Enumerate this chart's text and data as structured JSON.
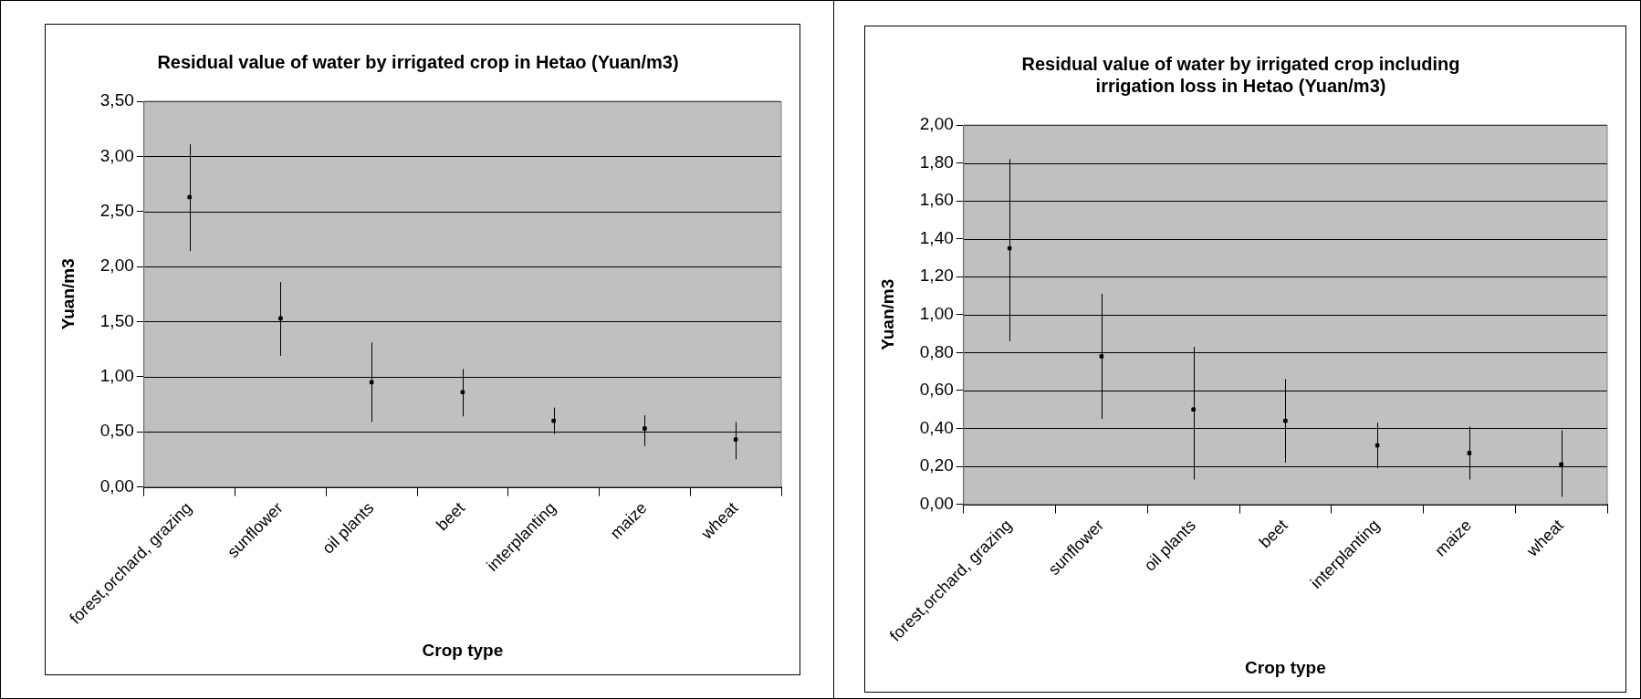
{
  "chart_data": [
    {
      "type": "scatter",
      "title": "Residual value of water by irrigated crop in Hetao (Yuan/m3)",
      "xlabel": "Crop type",
      "ylabel": "Yuan/m3",
      "categories": [
        "forest,orchard, grazing",
        "sunflower",
        "oil plants",
        "beet",
        "interplanting",
        "maize",
        "wheat"
      ],
      "series": [
        {
          "color": "#000000",
          "values": [
            2.63,
            1.53,
            0.95,
            0.86,
            0.6,
            0.53,
            0.43
          ],
          "errors": [
            [
              2.14,
              3.11
            ],
            [
              1.19,
              1.86
            ],
            [
              0.59,
              1.31
            ],
            [
              0.64,
              1.07
            ],
            [
              0.48,
              0.72
            ],
            [
              0.37,
              0.65
            ],
            [
              0.25,
              0.59
            ]
          ]
        }
      ],
      "ylim": [
        0,
        3.5
      ],
      "yticks": [
        {
          "value": 0,
          "label": "0,00"
        },
        {
          "value": 0.5,
          "label": "0,50"
        },
        {
          "value": 1,
          "label": "1,00"
        },
        {
          "value": 1.5,
          "label": "1,50"
        },
        {
          "value": 2,
          "label": "2,00"
        },
        {
          "value": 2.5,
          "label": "2,50"
        },
        {
          "value": 3,
          "label": "3,00"
        },
        {
          "value": 3.5,
          "label": "3,50"
        }
      ],
      "grid": "y",
      "legend": false,
      "marker": "square"
    },
    {
      "type": "scatter",
      "title": "Residual value of water by irrigated crop including irrigation loss in Hetao (Yuan/m3)",
      "xlabel": "Crop type",
      "ylabel": "Yuan/m3",
      "categories": [
        "forest,orchard, grazing",
        "sunflower",
        "oil plants",
        "beet",
        "interplanting",
        "maize",
        "wheat"
      ],
      "series": [
        {
          "color": "#000000",
          "values": [
            1.35,
            0.78,
            0.5,
            0.44,
            0.31,
            0.27,
            0.21
          ],
          "errors": [
            [
              0.86,
              1.82
            ],
            [
              0.45,
              1.11
            ],
            [
              0.13,
              0.83
            ],
            [
              0.22,
              0.66
            ],
            [
              0.19,
              0.43
            ],
            [
              0.13,
              0.41
            ],
            [
              0.04,
              0.39
            ]
          ]
        }
      ],
      "ylim": [
        0,
        2
      ],
      "yticks": [
        {
          "value": 0,
          "label": "0,00"
        },
        {
          "value": 0.2,
          "label": "0,20"
        },
        {
          "value": 0.4,
          "label": "0,40"
        },
        {
          "value": 0.6,
          "label": "0,60"
        },
        {
          "value": 0.8,
          "label": "0,80"
        },
        {
          "value": 1,
          "label": "1,00"
        },
        {
          "value": 1.2,
          "label": "1,20"
        },
        {
          "value": 1.4,
          "label": "1,40"
        },
        {
          "value": 1.6,
          "label": "1,60"
        },
        {
          "value": 1.8,
          "label": "1,80"
        },
        {
          "value": 2,
          "label": "2,00"
        }
      ],
      "grid": "y",
      "legend": false,
      "marker": "square"
    }
  ]
}
